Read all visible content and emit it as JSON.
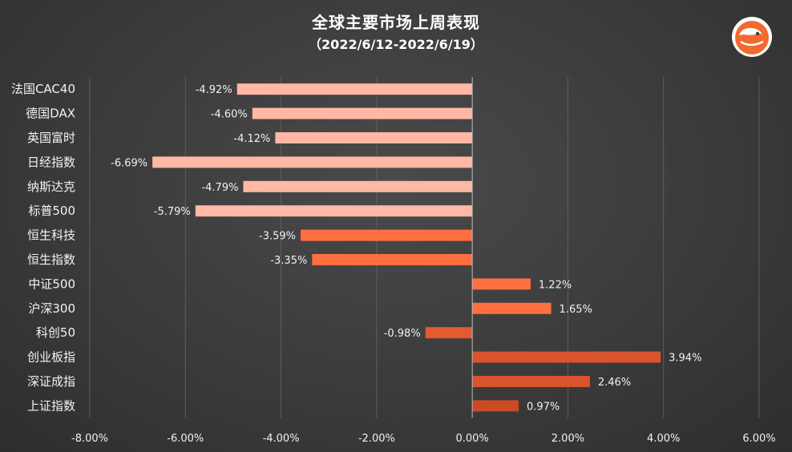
{
  "chart_data": {
    "type": "bar",
    "orientation": "horizontal",
    "title": "全球主要市场上周表现",
    "subtitle": "（2022/6/12-2022/6/19）",
    "categories": [
      "法国CAC40",
      "德国DAX",
      "英国富时",
      "日经指数",
      "纳斯达克",
      "标普500",
      "恒生科技",
      "恒生指数",
      "中证500",
      "沪深300",
      "科创50",
      "创业板指",
      "深证成指",
      "上证指数"
    ],
    "values": [
      -4.92,
      -4.6,
      -4.12,
      -6.69,
      -4.79,
      -5.79,
      -3.59,
      -3.35,
      1.22,
      1.65,
      -0.98,
      3.94,
      2.46,
      0.97
    ],
    "value_labels": [
      "-4.92%",
      "-4.60%",
      "-4.12%",
      "-6.69%",
      "-4.79%",
      "-5.79%",
      "-3.59%",
      "-3.35%",
      "1.22%",
      "1.65%",
      "-0.98%",
      "3.94%",
      "2.46%",
      "0.97%"
    ],
    "xlim": [
      -8,
      6
    ],
    "x_ticks": [
      -8,
      -6,
      -4,
      -2,
      0,
      2,
      4,
      6
    ],
    "x_tick_labels": [
      "-8.00%",
      "-6.00%",
      "-4.00%",
      "-2.00%",
      "0.00%",
      "2.00%",
      "4.00%",
      "6.00%"
    ],
    "grid": true,
    "legend": "none",
    "colors": {
      "background": "#3b3b3b",
      "gridline": "#5e5e5e",
      "zero_line": "#bdbdbd",
      "text": "#f2f2f2",
      "bars": [
        "#ffb8a6",
        "#ffb8a6",
        "#ffb8a6",
        "#ffb8a6",
        "#ffb8a6",
        "#ffb8a6",
        "#ff6f3f",
        "#ff6f3f",
        "#ff6f3f",
        "#ff6f3f",
        "#e55a2e",
        "#d9542c",
        "#d9542c",
        "#c94a24"
      ],
      "logo": "#f26a2e"
    }
  }
}
